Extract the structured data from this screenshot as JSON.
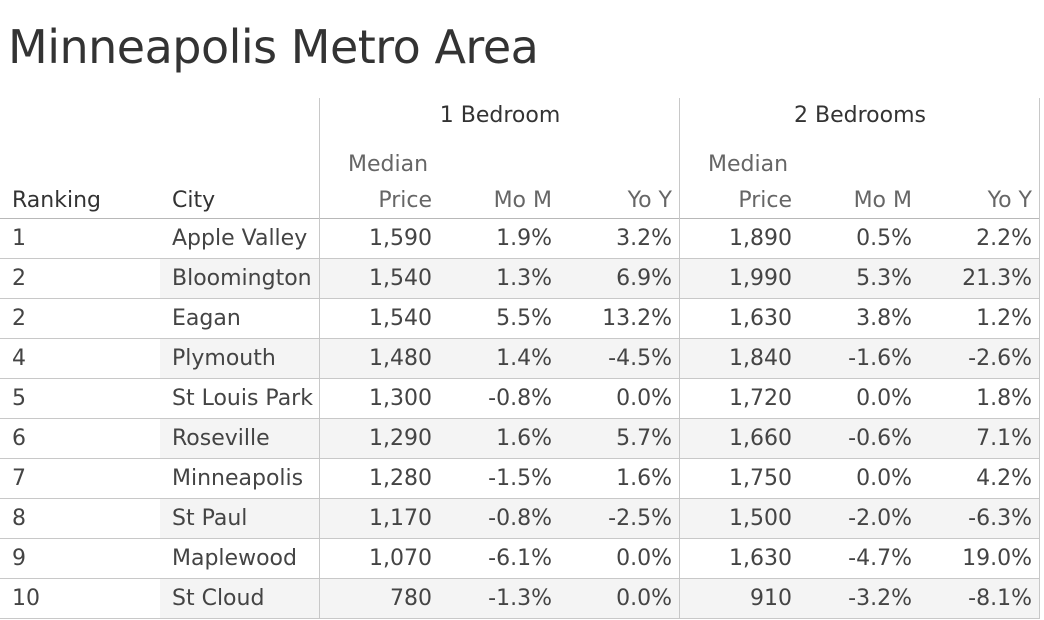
{
  "title": "Minneapolis Metro Area",
  "groups": {
    "one_bed": "1 Bedroom",
    "two_bed": "2 Bedrooms"
  },
  "headers": {
    "ranking": "Ranking",
    "city": "City",
    "median_top": "Median",
    "median_bottom": "Price",
    "mom": "Mo M",
    "yoy": "Yo Y"
  },
  "rows": [
    {
      "rank": "1",
      "city": "Apple Valley",
      "p1": "1,590",
      "m1": "1.9%",
      "y1": "3.2%",
      "p2": "1,890",
      "m2": "0.5%",
      "y2": "2.2%"
    },
    {
      "rank": "2",
      "city": "Bloomington",
      "p1": "1,540",
      "m1": "1.3%",
      "y1": "6.9%",
      "p2": "1,990",
      "m2": "5.3%",
      "y2": "21.3%"
    },
    {
      "rank": "2",
      "city": "Eagan",
      "p1": "1,540",
      "m1": "5.5%",
      "y1": "13.2%",
      "p2": "1,630",
      "m2": "3.8%",
      "y2": "1.2%"
    },
    {
      "rank": "4",
      "city": "Plymouth",
      "p1": "1,480",
      "m1": "1.4%",
      "y1": "-4.5%",
      "p2": "1,840",
      "m2": "-1.6%",
      "y2": "-2.6%"
    },
    {
      "rank": "5",
      "city": "St Louis Park",
      "p1": "1,300",
      "m1": "-0.8%",
      "y1": "0.0%",
      "p2": "1,720",
      "m2": "0.0%",
      "y2": "1.8%"
    },
    {
      "rank": "6",
      "city": "Roseville",
      "p1": "1,290",
      "m1": "1.6%",
      "y1": "5.7%",
      "p2": "1,660",
      "m2": "-0.6%",
      "y2": "7.1%"
    },
    {
      "rank": "7",
      "city": "Minneapolis",
      "p1": "1,280",
      "m1": "-1.5%",
      "y1": "1.6%",
      "p2": "1,750",
      "m2": "0.0%",
      "y2": "4.2%"
    },
    {
      "rank": "8",
      "city": "St Paul",
      "p1": "1,170",
      "m1": "-0.8%",
      "y1": "-2.5%",
      "p2": "1,500",
      "m2": "-2.0%",
      "y2": "-6.3%"
    },
    {
      "rank": "9",
      "city": "Maplewood",
      "p1": "1,070",
      "m1": "-6.1%",
      "y1": "0.0%",
      "p2": "1,630",
      "m2": "-4.7%",
      "y2": "19.0%"
    },
    {
      "rank": "10",
      "city": "St Cloud",
      "p1": "780",
      "m1": "-1.3%",
      "y1": "0.0%",
      "p2": "910",
      "m2": "-3.2%",
      "y2": "-8.1%"
    }
  ]
}
